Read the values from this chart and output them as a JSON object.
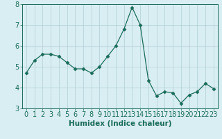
{
  "x": [
    0,
    1,
    2,
    3,
    4,
    5,
    6,
    7,
    8,
    9,
    10,
    11,
    12,
    13,
    14,
    15,
    16,
    17,
    18,
    19,
    20,
    21,
    22,
    23
  ],
  "y": [
    4.7,
    5.3,
    5.6,
    5.6,
    5.5,
    5.2,
    4.9,
    4.9,
    4.7,
    5.0,
    5.5,
    6.0,
    6.8,
    7.85,
    7.0,
    4.35,
    3.6,
    3.8,
    3.75,
    3.25,
    3.65,
    3.8,
    4.2,
    3.95
  ],
  "line_color": "#1a6b5a",
  "marker": "D",
  "marker_size": 2.5,
  "bg_color": "#d9eef2",
  "grid_color": "#b0cdd4",
  "xlabel": "Humidex (Indice chaleur)",
  "ylim": [
    3.0,
    8.0
  ],
  "xlim": [
    -0.5,
    23.5
  ],
  "yticks": [
    3,
    4,
    5,
    6,
    7,
    8
  ],
  "xticks": [
    0,
    1,
    2,
    3,
    4,
    5,
    6,
    7,
    8,
    9,
    10,
    11,
    12,
    13,
    14,
    15,
    16,
    17,
    18,
    19,
    20,
    21,
    22,
    23
  ],
  "title_color": "#1a6b5a",
  "label_fontsize": 7.5,
  "tick_fontsize": 7.0
}
